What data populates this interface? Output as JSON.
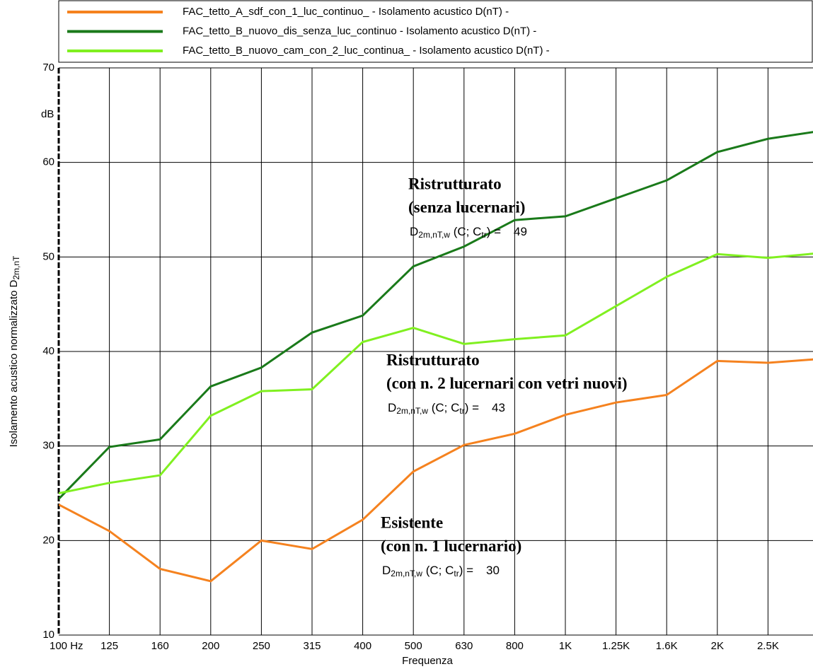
{
  "chart_data": {
    "type": "line",
    "categories": [
      "100 Hz",
      "125",
      "160",
      "200",
      "250",
      "315",
      "400",
      "500",
      "630",
      "800",
      "1K",
      "1.25K",
      "1.6K",
      "2K",
      "2.5K",
      null
    ],
    "series": [
      {
        "name": "FAC_tetto_A_sdf_con_1_luc_continuo_ - Isolamento acustico D(nT) -",
        "color": "#f5821f",
        "values": [
          23.8,
          21,
          17,
          15.7,
          20,
          19.1,
          22.2,
          27.3,
          30.1,
          31.3,
          33.3,
          34.6,
          35.4,
          39,
          38.8,
          39.2
        ]
      },
      {
        "name": "FAC_tetto_B_nuovo_dis_senza_luc_continuo - Isolamento acustico D(nT) -",
        "color": "#1a7a1a",
        "values": [
          24.4,
          29.9,
          30.7,
          36.3,
          38.3,
          42,
          43.8,
          49,
          51.1,
          53.9,
          54.3,
          56.2,
          58.1,
          61.1,
          62.5,
          63.3
        ]
      },
      {
        "name": "FAC_tetto_B_nuovo_cam_con_2_luc_continua_ - Isolamento acustico D(nT) -",
        "color": "#80f020",
        "values": [
          25,
          26.1,
          26.9,
          33.2,
          35.8,
          36,
          41,
          42.5,
          40.8,
          41.3,
          41.7,
          44.8,
          47.9,
          50.3,
          49.9,
          50.4
        ]
      }
    ],
    "ylim": [
      10,
      70
    ],
    "yticks": [
      10,
      20,
      30,
      40,
      50,
      60,
      70
    ],
    "grid": true,
    "y_unit": "dB",
    "ylabel": [
      "Isolamento acustico normalizzato D",
      "2m,nT"
    ],
    "xlabel": "Frequenza",
    "formula": [
      "D",
      "2m,nT,w",
      " (C; C",
      "tr",
      ") ="
    ],
    "annotations": [
      {
        "lines": [
          "Ristrutturato",
          "(senza lucernari)"
        ],
        "value": 49
      },
      {
        "lines": [
          "Ristrutturato",
          "(con n. 2 lucernari con vetri nuovi)"
        ],
        "value": 43
      },
      {
        "lines": [
          "Esistente",
          "(con n. 1 lucernario)"
        ],
        "value": 30
      }
    ]
  }
}
